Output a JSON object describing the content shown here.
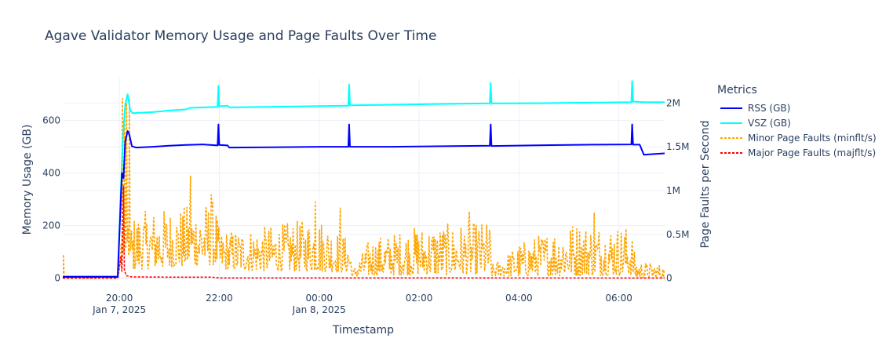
{
  "chart_data": {
    "type": "line",
    "title": "Agave Validator Memory Usage and Page Faults Over Time",
    "xlabel": "Timestamp",
    "ylabel": "Memory Usage (GB)",
    "y2label": "Page Faults per Second",
    "x_range": [
      "2025-01-07T18:52",
      "2025-01-08T06:55"
    ],
    "ylim": [
      -10,
      760
    ],
    "y2lim": [
      -30000,
      2280000
    ],
    "x_ticks": [
      {
        "t": "2025-01-07T20:00",
        "line1": "20:00",
        "line2": "Jan 7, 2025"
      },
      {
        "t": "2025-01-07T22:00",
        "line1": "22:00",
        "line2": ""
      },
      {
        "t": "2025-01-08T00:00",
        "line1": "00:00",
        "line2": "Jan 8, 2025"
      },
      {
        "t": "2025-01-08T02:00",
        "line1": "02:00",
        "line2": ""
      },
      {
        "t": "2025-01-08T04:00",
        "line1": "04:00",
        "line2": ""
      },
      {
        "t": "2025-01-08T06:00",
        "line1": "06:00",
        "line2": ""
      }
    ],
    "y_ticks": [
      {
        "v": 0,
        "label": "0"
      },
      {
        "v": 200,
        "label": "200"
      },
      {
        "v": 400,
        "label": "400"
      },
      {
        "v": 600,
        "label": "600"
      }
    ],
    "y2_ticks": [
      {
        "v": 0,
        "label": "0"
      },
      {
        "v": 500000,
        "label": "0.5M"
      },
      {
        "v": 1000000,
        "label": "1M"
      },
      {
        "v": 1500000,
        "label": "1.5M"
      },
      {
        "v": 2000000,
        "label": "2M"
      }
    ],
    "grid": true,
    "legend": {
      "title": "Metrics",
      "position": "right"
    },
    "series": [
      {
        "name": "RSS (GB)",
        "axis": "y",
        "color": "#0000ff",
        "dash": "solid",
        "points": [
          [
            "2025-01-07T18:52",
            5
          ],
          [
            "2025-01-07T19:58",
            5
          ],
          [
            "2025-01-07T20:03",
            400
          ],
          [
            "2025-01-07T20:05",
            380
          ],
          [
            "2025-01-07T20:07",
            520
          ],
          [
            "2025-01-07T20:10",
            560
          ],
          [
            "2025-01-07T20:12",
            545
          ],
          [
            "2025-01-07T20:15",
            502
          ],
          [
            "2025-01-07T20:20",
            497
          ],
          [
            "2025-01-07T20:40",
            500
          ],
          [
            "2025-01-07T21:00",
            504
          ],
          [
            "2025-01-07T21:20",
            507
          ],
          [
            "2025-01-07T21:40",
            509
          ],
          [
            "2025-01-07T21:58",
            505
          ],
          [
            "2025-01-07T21:59",
            585
          ],
          [
            "2025-01-07T22:00",
            507
          ],
          [
            "2025-01-07T22:10",
            505
          ],
          [
            "2025-01-07T22:12",
            497
          ],
          [
            "2025-01-07T23:00",
            498
          ],
          [
            "2025-01-08T00:00",
            500
          ],
          [
            "2025-01-08T00:35",
            500
          ],
          [
            "2025-01-08T00:36",
            585
          ],
          [
            "2025-01-08T00:37",
            500
          ],
          [
            "2025-01-08T01:30",
            500
          ],
          [
            "2025-01-08T02:30",
            502
          ],
          [
            "2025-01-08T03:25",
            504
          ],
          [
            "2025-01-08T03:26",
            585
          ],
          [
            "2025-01-08T03:27",
            503
          ],
          [
            "2025-01-08T04:30",
            506
          ],
          [
            "2025-01-08T05:30",
            508
          ],
          [
            "2025-01-08T06:15",
            509
          ],
          [
            "2025-01-08T06:16",
            585
          ],
          [
            "2025-01-08T06:17",
            508
          ],
          [
            "2025-01-08T06:25",
            508
          ],
          [
            "2025-01-08T06:30",
            470
          ],
          [
            "2025-01-08T06:40",
            472
          ],
          [
            "2025-01-08T06:55",
            475
          ]
        ]
      },
      {
        "name": "VSZ (GB)",
        "axis": "y",
        "color": "#00ffff",
        "dash": "solid",
        "points": [
          [
            "2025-01-07T18:52",
            8
          ],
          [
            "2025-01-07T19:58",
            8
          ],
          [
            "2025-01-07T20:04",
            520
          ],
          [
            "2025-01-07T20:07",
            660
          ],
          [
            "2025-01-07T20:10",
            700
          ],
          [
            "2025-01-07T20:13",
            640
          ],
          [
            "2025-01-07T20:16",
            628
          ],
          [
            "2025-01-07T20:40",
            632
          ],
          [
            "2025-01-07T21:00",
            638
          ],
          [
            "2025-01-07T21:20",
            642
          ],
          [
            "2025-01-07T21:25",
            648
          ],
          [
            "2025-01-07T21:58",
            652
          ],
          [
            "2025-01-07T21:59",
            732
          ],
          [
            "2025-01-07T22:00",
            654
          ],
          [
            "2025-01-07T22:10",
            656
          ],
          [
            "2025-01-07T22:12",
            650
          ],
          [
            "2025-01-07T23:00",
            652
          ],
          [
            "2025-01-08T00:00",
            655
          ],
          [
            "2025-01-08T00:35",
            656
          ],
          [
            "2025-01-08T00:36",
            737
          ],
          [
            "2025-01-08T00:37",
            658
          ],
          [
            "2025-01-08T01:30",
            660
          ],
          [
            "2025-01-08T02:30",
            663
          ],
          [
            "2025-01-08T03:25",
            665
          ],
          [
            "2025-01-08T03:26",
            743
          ],
          [
            "2025-01-08T03:27",
            665
          ],
          [
            "2025-01-08T04:30",
            666
          ],
          [
            "2025-01-08T05:30",
            668
          ],
          [
            "2025-01-08T06:15",
            670
          ],
          [
            "2025-01-08T06:16",
            750
          ],
          [
            "2025-01-08T06:17",
            672
          ],
          [
            "2025-01-08T06:30",
            670
          ],
          [
            "2025-01-08T06:55",
            670
          ]
        ]
      },
      {
        "name": "Minor Page Faults (minflt/s)",
        "axis": "y2",
        "color": "#ffa500",
        "dash": "dot",
        "profile": [
          [
            "2025-01-07T18:52",
            2000,
            15000
          ],
          [
            "2025-01-07T19:58",
            2000,
            15000
          ],
          [
            "2025-01-07T20:00",
            100000,
            400000
          ],
          [
            "2025-01-07T20:20",
            100000,
            750000
          ],
          [
            "2025-01-07T21:00",
            120000,
            800000
          ],
          [
            "2025-01-07T21:55",
            150000,
            900000
          ],
          [
            "2025-01-07T22:00",
            100000,
            550000
          ],
          [
            "2025-01-07T23:00",
            80000,
            600000
          ],
          [
            "2025-01-08T00:00",
            80000,
            700000
          ],
          [
            "2025-01-08T00:37",
            60000,
            450000
          ],
          [
            "2025-01-08T00:40",
            10000,
            80000
          ],
          [
            "2025-01-08T01:00",
            30000,
            450000
          ],
          [
            "2025-01-08T02:00",
            40000,
            600000
          ],
          [
            "2025-01-08T03:25",
            40000,
            650000
          ],
          [
            "2025-01-08T03:27",
            20000,
            150000
          ],
          [
            "2025-01-08T04:00",
            20000,
            400000
          ],
          [
            "2025-01-08T05:00",
            30000,
            650000
          ],
          [
            "2025-01-08T06:15",
            30000,
            600000
          ],
          [
            "2025-01-08T06:20",
            5000,
            200000
          ],
          [
            "2025-01-08T06:55",
            5000,
            150000
          ]
        ],
        "spikes": [
          [
            "2025-01-07T18:53",
            270000
          ],
          [
            "2025-01-07T20:04",
            2050000
          ],
          [
            "2025-01-07T20:06",
            1900000
          ],
          [
            "2025-01-07T20:09",
            2000000
          ],
          [
            "2025-01-07T20:12",
            2050000
          ],
          [
            "2025-01-07T21:25",
            1170000
          ],
          [
            "2025-01-07T21:50",
            950000
          ],
          [
            "2025-01-07T23:55",
            870000
          ],
          [
            "2025-01-08T00:25",
            800000
          ],
          [
            "2025-01-08T03:00",
            760000
          ],
          [
            "2025-01-08T05:30",
            750000
          ]
        ]
      },
      {
        "name": "Major Page Faults (majflt/s)",
        "axis": "y2",
        "color": "#ff0000",
        "dash": "dot",
        "points": [
          [
            "2025-01-07T18:52",
            0
          ],
          [
            "2025-01-07T19:58",
            0
          ],
          [
            "2025-01-07T20:02",
            250000
          ],
          [
            "2025-01-07T20:03",
            80000
          ],
          [
            "2025-01-07T20:05",
            1050000
          ],
          [
            "2025-01-07T20:06",
            100000
          ],
          [
            "2025-01-07T20:08",
            30000
          ],
          [
            "2025-01-07T20:15",
            15000
          ],
          [
            "2025-01-07T21:00",
            12000
          ],
          [
            "2025-01-07T21:50",
            12000
          ],
          [
            "2025-01-07T22:00",
            3000
          ],
          [
            "2025-01-08T06:55",
            2000
          ]
        ]
      }
    ]
  }
}
